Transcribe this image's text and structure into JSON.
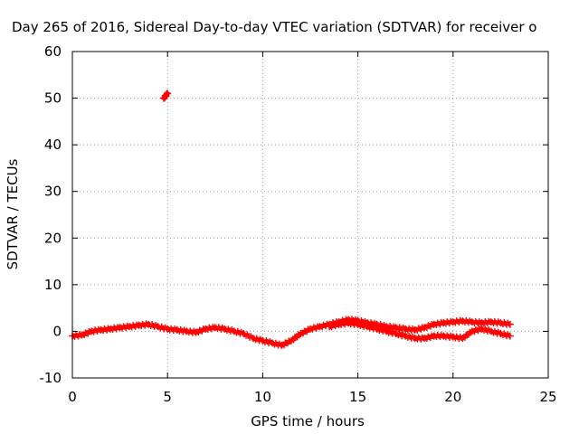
{
  "chart_data": {
    "type": "scatter",
    "title": "Day 265 of 2016, Sidereal Day-to-day VTEC variation (SDTVAR) for receiver o",
    "xlabel": "GPS time / hours",
    "ylabel": "SDTVAR / TECUs",
    "xlim": [
      0,
      25
    ],
    "ylim": [
      -10,
      60
    ],
    "x_ticks": [
      0,
      5,
      10,
      15,
      20,
      25
    ],
    "y_ticks": [
      -10,
      0,
      10,
      20,
      30,
      40,
      50,
      60
    ],
    "grid": true,
    "legend": "none",
    "marker_color": "#ff0000",
    "series": [
      {
        "x": [
          0.0,
          0.5,
          1.0,
          1.5,
          2.0,
          2.5,
          3.0,
          3.5,
          4.0,
          4.5,
          5.0,
          5.5,
          6.0,
          6.5,
          7.0,
          7.5,
          8.0,
          8.5,
          9.0,
          9.5,
          10.0,
          10.5,
          11.0,
          11.5,
          12.0,
          12.5,
          13.0,
          13.5,
          14.0,
          14.5,
          15.0,
          15.5,
          16.0,
          16.5,
          17.0,
          17.5,
          18.0,
          18.5,
          19.0,
          19.5,
          20.0,
          20.5,
          21.0,
          21.5,
          22.0,
          22.5,
          23.0
        ],
        "y": [
          -1.0,
          -0.8,
          0.0,
          0.3,
          0.5,
          0.8,
          1.0,
          1.3,
          1.5,
          1.0,
          0.5,
          0.3,
          0.0,
          -0.2,
          0.5,
          0.8,
          0.5,
          0.0,
          -0.5,
          -1.5,
          -2.0,
          -2.5,
          -3.0,
          -2.0,
          -0.5,
          0.5,
          1.0,
          1.5,
          2.0,
          2.5,
          2.3,
          1.8,
          1.5,
          1.0,
          0.8,
          0.5,
          0.3,
          0.8,
          1.5,
          1.8,
          2.0,
          2.2,
          2.0,
          1.8,
          2.0,
          1.8,
          1.5
        ]
      },
      {
        "x": [
          13.5,
          14.0,
          14.5,
          15.0,
          15.5,
          16.0,
          16.5,
          17.0,
          17.5,
          18.0,
          18.5,
          19.0,
          19.5,
          20.0,
          20.5,
          21.0,
          21.5,
          22.0,
          22.5,
          23.0
        ],
        "y": [
          1.0,
          1.5,
          1.8,
          1.5,
          1.0,
          0.5,
          0.0,
          -0.5,
          -1.0,
          -1.5,
          -1.5,
          -1.0,
          -1.0,
          -1.2,
          -1.5,
          0.0,
          0.5,
          0.0,
          -0.5,
          -1.0
        ]
      },
      {
        "x": [
          4.8,
          4.9,
          5.0
        ],
        "y": [
          50.0,
          50.5,
          51.0
        ]
      }
    ]
  }
}
